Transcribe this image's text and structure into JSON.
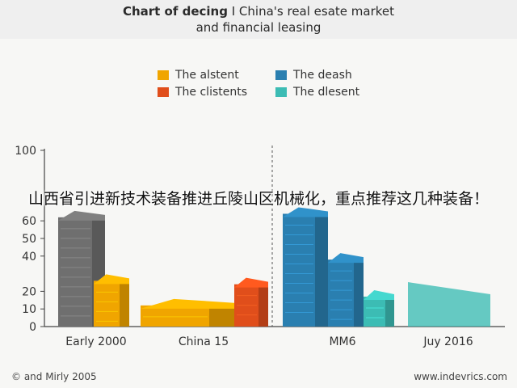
{
  "title": {
    "bold": "Chart of decing",
    "line1_rest": " I China's real esate market",
    "line2": "and financial leasing"
  },
  "legend": [
    {
      "label": "The alstent",
      "color": "#f0a500"
    },
    {
      "label": "The deash",
      "color": "#2a7fb0"
    },
    {
      "label": "The clistents",
      "color": "#e04e1b"
    },
    {
      "label": "The dlesent",
      "color": "#3cbcb4"
    }
  ],
  "overlay_text": "山西省引进新技术装备推进丘陵山区机械化，重点推荐这几种装备！",
  "footer": {
    "left": "© and Mirly 2005",
    "right": "www.indevrics.com"
  },
  "chart_data": {
    "type": "bar",
    "categories": [
      "Early 2000",
      "China 15",
      "MM6",
      "Juy 2016"
    ],
    "yticks": [
      0,
      10,
      20,
      40,
      50,
      60,
      100
    ],
    "ylim": [
      0,
      100
    ],
    "bars": [
      {
        "category": "Early 2000",
        "value": 62,
        "color": "#6f6f6f"
      },
      {
        "category": "Early 2000",
        "value": 26,
        "color": "#f0a500"
      },
      {
        "category": "China 15",
        "value": 12,
        "color": "#f0a500"
      },
      {
        "category": "China 15",
        "value": 24,
        "color": "#e04e1b"
      },
      {
        "category": "MM6",
        "value": 64,
        "color": "#2a7fb0"
      },
      {
        "category": "MM6",
        "value": 38,
        "color": "#2a7fb0"
      },
      {
        "category": "MM6",
        "value": 17,
        "color": "#3cbcb4"
      },
      {
        "category": "Juy 2016",
        "value": 22,
        "color": "#3cbcb4"
      }
    ]
  }
}
